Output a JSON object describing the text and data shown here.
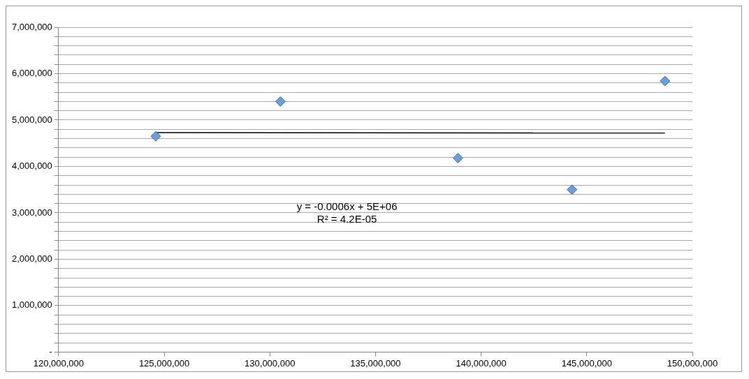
{
  "chart_data": {
    "type": "scatter",
    "marker": "diamond",
    "grid": "y",
    "xlim": [
      120000000,
      150000000
    ],
    "xticks": [
      {
        "value": 120000000,
        "label": "120,000,000"
      },
      {
        "value": 125000000,
        "label": "125,000,000"
      },
      {
        "value": 130000000,
        "label": "130,000,000"
      },
      {
        "value": 135000000,
        "label": "135,000,000"
      },
      {
        "value": 140000000,
        "label": "140,000,000"
      },
      {
        "value": 145000000,
        "label": "145,000,000"
      },
      {
        "value": 150000000,
        "label": "150,000,000"
      }
    ],
    "ylim": [
      0,
      7000000
    ],
    "yticks": [
      {
        "value": 0,
        "label": "-"
      },
      {
        "value": 200000,
        "label": null
      },
      {
        "value": 400000,
        "label": null
      },
      {
        "value": 600000,
        "label": null
      },
      {
        "value": 800000,
        "label": null
      },
      {
        "value": 1000000,
        "label": "1,000,000"
      },
      {
        "value": 1200000,
        "label": null
      },
      {
        "value": 1400000,
        "label": null
      },
      {
        "value": 1600000,
        "label": null
      },
      {
        "value": 1800000,
        "label": null
      },
      {
        "value": 2000000,
        "label": "2,000,000"
      },
      {
        "value": 2200000,
        "label": null
      },
      {
        "value": 2400000,
        "label": null
      },
      {
        "value": 2600000,
        "label": null
      },
      {
        "value": 2800000,
        "label": null
      },
      {
        "value": 3000000,
        "label": "3,000,000"
      },
      {
        "value": 3200000,
        "label": null
      },
      {
        "value": 3400000,
        "label": null
      },
      {
        "value": 3600000,
        "label": null
      },
      {
        "value": 3800000,
        "label": null
      },
      {
        "value": 4000000,
        "label": "4,000,000"
      },
      {
        "value": 4200000,
        "label": null
      },
      {
        "value": 4400000,
        "label": null
      },
      {
        "value": 4600000,
        "label": null
      },
      {
        "value": 4800000,
        "label": null
      },
      {
        "value": 5000000,
        "label": "5,000,000"
      },
      {
        "value": 5200000,
        "label": null
      },
      {
        "value": 5400000,
        "label": null
      },
      {
        "value": 5600000,
        "label": null
      },
      {
        "value": 5800000,
        "label": null
      },
      {
        "value": 6000000,
        "label": "6,000,000"
      },
      {
        "value": 6200000,
        "label": null
      },
      {
        "value": 6400000,
        "label": null
      },
      {
        "value": 6600000,
        "label": null
      },
      {
        "value": 6800000,
        "label": null
      },
      {
        "value": 7000000,
        "label": "7,000,000"
      }
    ],
    "series": [
      {
        "color": "#6a9fdc",
        "x": [
          124600000,
          130500000,
          138900000,
          144300000,
          148700000
        ],
        "values": [
          4650000,
          5400000,
          4180000,
          3500000,
          5840000
        ]
      },
      {
        "type": "line",
        "color": "#000000",
        "marker": "none",
        "x": [
          124600000,
          148700000
        ],
        "values": [
          4730000,
          4720000
        ]
      }
    ],
    "annotations": [
      "y = -0.0006x + 5E+06",
      "R² = 4.2E-05"
    ]
  }
}
